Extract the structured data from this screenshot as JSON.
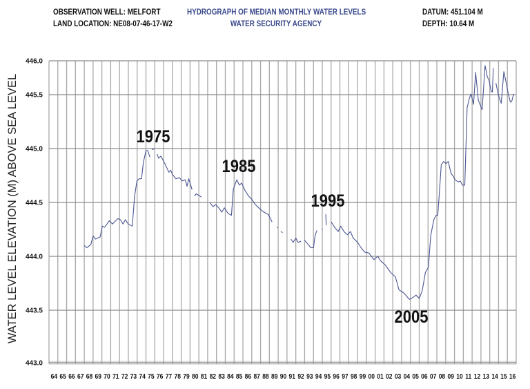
{
  "header": {
    "well": "OBSERVATION WELL: MELFORT",
    "location": "LAND LOCATION: NE08-07-46-17-W2",
    "title": "HYDROGRAPH OF MEDIAN MONTHLY WATER LEVELS",
    "agency": "WATER SECURITY AGENCY",
    "datum": "DATUM: 451.104 M",
    "depth": "DEPTH: 10.64 M"
  },
  "chart_data": {
    "type": "line",
    "title": "HYDROGRAPH OF MEDIAN MONTHLY WATER LEVELS",
    "xlabel": "",
    "ylabel": "WATER LEVEL ELEVATION (M) ABOVE SEA LEVEL",
    "xlim": [
      1964,
      2017
    ],
    "ylim": [
      443.0,
      446.0
    ],
    "grid": true,
    "line_color": "#4a5592",
    "x_tick_labels": [
      "64",
      "65",
      "66",
      "67",
      "68",
      "69",
      "70",
      "71",
      "72",
      "73",
      "74",
      "75",
      "76",
      "77",
      "78",
      "79",
      "80",
      "81",
      "82",
      "83",
      "84",
      "85",
      "86",
      "87",
      "88",
      "89",
      "90",
      "91",
      "92",
      "93",
      "94",
      "95",
      "96",
      "97",
      "98",
      "99",
      "00",
      "01",
      "02",
      "03",
      "04",
      "05",
      "06",
      "07",
      "08",
      "09",
      "10",
      "11",
      "12",
      "13",
      "14",
      "15",
      "16"
    ],
    "y_tick_labels": [
      "443.0",
      "443.5",
      "444.0",
      "444.5",
      "445.0",
      "445.5",
      "446.0"
    ],
    "annotations": [
      "1975",
      "1985",
      "1995",
      "2005"
    ],
    "segments": [
      [
        [
          1968.0,
          444.1
        ],
        [
          1968.3,
          444.08
        ],
        [
          1968.75,
          444.11
        ],
        [
          1969.0,
          444.19
        ],
        [
          1969.27,
          444.16
        ],
        [
          1969.8,
          444.18
        ],
        [
          1970.05,
          444.28
        ],
        [
          1970.3,
          444.27
        ],
        [
          1970.85,
          444.33
        ],
        [
          1971.2,
          444.3
        ],
        [
          1971.8,
          444.35
        ],
        [
          1972.1,
          444.34
        ],
        [
          1972.4,
          444.3
        ],
        [
          1972.65,
          444.34
        ],
        [
          1973.0,
          444.3
        ],
        [
          1973.45,
          444.28
        ],
        [
          1973.7,
          444.55
        ],
        [
          1973.97,
          444.7
        ],
        [
          1974.23,
          444.72
        ],
        [
          1974.5,
          444.72
        ],
        [
          1974.7,
          444.87
        ],
        [
          1975.0,
          444.98
        ],
        [
          1975.2,
          444.98
        ],
        [
          1975.45,
          444.92
        ]
      ],
      [
        [
          1975.67,
          444.99
        ],
        [
          1976.0,
          445.0
        ]
      ],
      [
        [
          1976.25,
          444.95
        ],
        [
          1976.45,
          444.91
        ],
        [
          1976.7,
          444.93
        ],
        [
          1977.2,
          444.85
        ],
        [
          1977.6,
          444.78
        ],
        [
          1977.8,
          444.8
        ],
        [
          1978.0,
          444.76
        ],
        [
          1978.4,
          444.72
        ],
        [
          1978.8,
          444.73
        ],
        [
          1979.1,
          444.7
        ],
        [
          1979.45,
          444.71
        ],
        [
          1979.66,
          444.65
        ],
        [
          1979.85,
          444.72
        ],
        [
          1980.23,
          444.62
        ]
      ],
      [
        [
          1980.5,
          444.56
        ],
        [
          1980.7,
          444.58
        ],
        [
          1980.9,
          444.57
        ],
        [
          1981.3,
          444.55
        ]
      ],
      [
        [
          1982.25,
          444.5
        ],
        [
          1982.6,
          444.46
        ],
        [
          1982.9,
          444.48
        ],
        [
          1983.25,
          444.45
        ],
        [
          1983.6,
          444.41
        ],
        [
          1983.9,
          444.45
        ],
        [
          1984.3,
          444.4
        ],
        [
          1984.7,
          444.38
        ],
        [
          1984.9,
          444.62
        ],
        [
          1985.3,
          444.71
        ],
        [
          1985.6,
          444.66
        ],
        [
          1985.85,
          444.68
        ],
        [
          1986.24,
          444.61
        ],
        [
          1986.63,
          444.56
        ],
        [
          1987.0,
          444.53
        ],
        [
          1987.4,
          444.48
        ],
        [
          1987.8,
          444.45
        ],
        [
          1988.2,
          444.42
        ],
        [
          1988.6,
          444.4
        ],
        [
          1988.85,
          444.39
        ],
        [
          1989.0,
          444.37
        ],
        [
          1989.3,
          444.32
        ]
      ],
      [
        [
          1989.85,
          444.27
        ],
        [
          1989.95,
          444.265
        ]
      ],
      [
        [
          1990.3,
          444.23
        ],
        [
          1990.5,
          444.22
        ]
      ],
      [
        [
          1991.45,
          444.16
        ],
        [
          1991.7,
          444.13
        ],
        [
          1992.0,
          444.17
        ],
        [
          1992.24,
          444.13
        ],
        [
          1992.6,
          444.14
        ]
      ],
      [
        [
          1993.0,
          444.15
        ],
        [
          1993.3,
          444.12
        ],
        [
          1993.7,
          444.08
        ],
        [
          1994.0,
          444.08
        ],
        [
          1994.2,
          444.2
        ],
        [
          1994.4,
          444.24
        ]
      ],
      [
        [
          1994.95,
          444.25
        ],
        [
          1995.05,
          444.255
        ]
      ],
      [
        [
          1995.4,
          444.39
        ],
        [
          1995.45,
          444.29
        ]
      ],
      [
        [
          1996.0,
          444.32
        ],
        [
          1996.4,
          444.27
        ],
        [
          1996.8,
          444.23
        ],
        [
          1997.1,
          444.28
        ],
        [
          1997.46,
          444.23
        ],
        [
          1997.85,
          444.2
        ],
        [
          1998.2,
          444.23
        ],
        [
          1998.5,
          444.17
        ],
        [
          1999.0,
          444.13
        ],
        [
          1999.4,
          444.08
        ],
        [
          1999.8,
          444.04
        ],
        [
          2000.3,
          444.03
        ],
        [
          2000.85,
          443.97
        ],
        [
          2001.3,
          444.0
        ],
        [
          2001.6,
          443.96
        ],
        [
          2002.15,
          443.92
        ],
        [
          2002.76,
          443.85
        ],
        [
          2003.3,
          443.81
        ],
        [
          2003.7,
          443.69
        ],
        [
          2004.25,
          443.66
        ],
        [
          2004.9,
          443.6
        ],
        [
          2005.3,
          443.62
        ],
        [
          2005.63,
          443.64
        ],
        [
          2006.0,
          443.61
        ],
        [
          2006.34,
          443.68
        ],
        [
          2006.7,
          443.85
        ],
        [
          2007.04,
          443.9
        ],
        [
          2007.3,
          444.19
        ],
        [
          2007.65,
          444.34
        ],
        [
          2007.9,
          444.38
        ],
        [
          2008.1,
          444.38
        ],
        [
          2008.3,
          444.61
        ],
        [
          2008.5,
          444.85
        ],
        [
          2008.77,
          444.88
        ],
        [
          2009.03,
          444.86
        ],
        [
          2009.3,
          444.88
        ],
        [
          2009.6,
          444.77
        ],
        [
          2009.8,
          444.75
        ],
        [
          2010.07,
          444.71
        ],
        [
          2010.44,
          444.69
        ],
        [
          2010.64,
          444.7
        ],
        [
          2010.9,
          444.66
        ],
        [
          2011.17,
          444.66
        ],
        [
          2011.43,
          445.38
        ],
        [
          2011.7,
          445.47
        ],
        [
          2011.87,
          445.51
        ],
        [
          2012.16,
          445.41
        ],
        [
          2012.4,
          445.83
        ],
        [
          2012.7,
          445.45
        ],
        [
          2013.13,
          445.36
        ],
        [
          2013.47,
          445.93
        ],
        [
          2013.73,
          445.76
        ],
        [
          2013.9,
          445.72
        ],
        [
          2014.17,
          445.55
        ],
        [
          2014.3,
          445.54
        ],
        [
          2014.4,
          445.89
        ]
      ],
      [
        [
          2014.7,
          445.67
        ],
        [
          2015.0,
          445.49
        ],
        [
          2015.3,
          445.42
        ],
        [
          2015.6,
          445.84
        ],
        [
          2015.87,
          445.67
        ],
        [
          2016.1,
          445.51
        ],
        [
          2016.34,
          445.43
        ],
        [
          2016.5,
          445.44
        ],
        [
          2016.7,
          445.51
        ]
      ]
    ]
  }
}
